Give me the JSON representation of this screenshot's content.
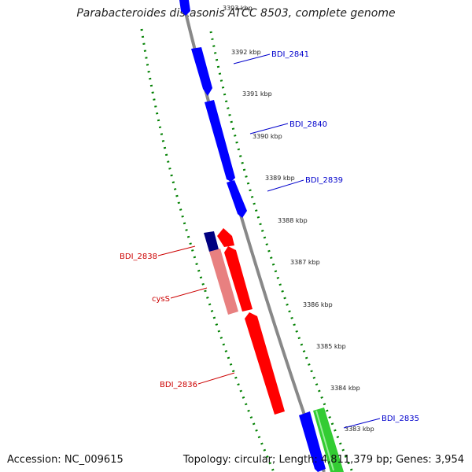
{
  "title": "Parabacteroides distasonis ATCC 8503, complete genome",
  "accession": "Accession: NC_009615",
  "summary": "Topology: circular; Length: 4,811,379 bp; Genes: 3,954",
  "colors": {
    "forward_gene": "#0000ff",
    "reverse_gene": "#ff0000",
    "rna": "#e88080",
    "other_forward": "#33cc33",
    "other_reverse": "#000080",
    "backbone": "#888888",
    "gc_ticks": "#008000",
    "forward_label": "#0000cc",
    "reverse_label": "#cc0000"
  },
  "ticks": [
    "3393 kbp",
    "3392 kbp",
    "3391 kbp",
    "3390 kbp",
    "3389 kbp",
    "3388 kbp",
    "3387 kbp",
    "3386 kbp",
    "3385 kbp",
    "3384 kbp",
    "3383 kbp"
  ],
  "gene_labels": {
    "bdi_2841": "BDI_2841",
    "bdi_2840": "BDI_2840",
    "bdi_2839": "BDI_2839",
    "bdi_2838": "BDI_2838",
    "cyss": "cysS",
    "bdi_2836": "BDI_2836",
    "bdi_2835": "BDI_2835"
  }
}
